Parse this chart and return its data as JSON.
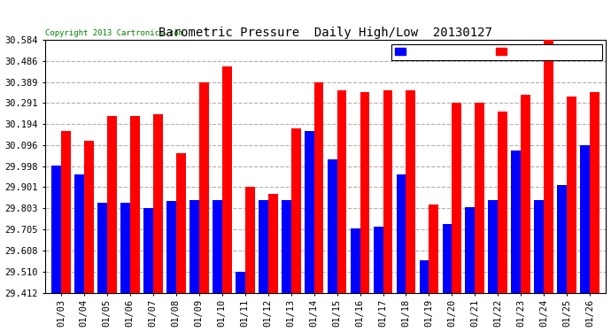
{
  "title": "Barometric Pressure  Daily High/Low  20130127",
  "copyright": "Copyright 2013 Cartronics.com",
  "dates": [
    "01/03",
    "01/04",
    "01/05",
    "01/06",
    "01/07",
    "01/08",
    "01/09",
    "01/10",
    "01/11",
    "01/12",
    "01/13",
    "01/14",
    "01/15",
    "01/16",
    "01/17",
    "01/18",
    "01/19",
    "01/20",
    "01/21",
    "01/22",
    "01/23",
    "01/24",
    "01/25",
    "01/26"
  ],
  "low_values": [
    30.0,
    29.96,
    29.83,
    29.83,
    29.803,
    29.835,
    29.84,
    29.84,
    29.51,
    29.84,
    29.84,
    30.16,
    30.03,
    29.71,
    29.72,
    29.96,
    29.56,
    29.73,
    29.81,
    29.84,
    30.07,
    29.84,
    29.91,
    30.096
  ],
  "high_values": [
    30.16,
    30.115,
    30.23,
    30.23,
    30.24,
    30.06,
    30.389,
    30.46,
    29.901,
    29.87,
    30.175,
    30.389,
    30.35,
    30.34,
    30.35,
    30.35,
    29.822,
    30.291,
    30.291,
    30.25,
    30.33,
    30.584,
    30.32,
    30.34
  ],
  "ymin": 29.412,
  "ymax": 30.584,
  "yticks": [
    29.412,
    29.51,
    29.608,
    29.705,
    29.803,
    29.901,
    29.998,
    30.096,
    30.194,
    30.291,
    30.389,
    30.486,
    30.584
  ],
  "bar_color_low": "#0000ff",
  "bar_color_high": "#ff0000",
  "bg_color": "#ffffff",
  "grid_color": "#b0b0b0",
  "title_fontsize": 10
}
